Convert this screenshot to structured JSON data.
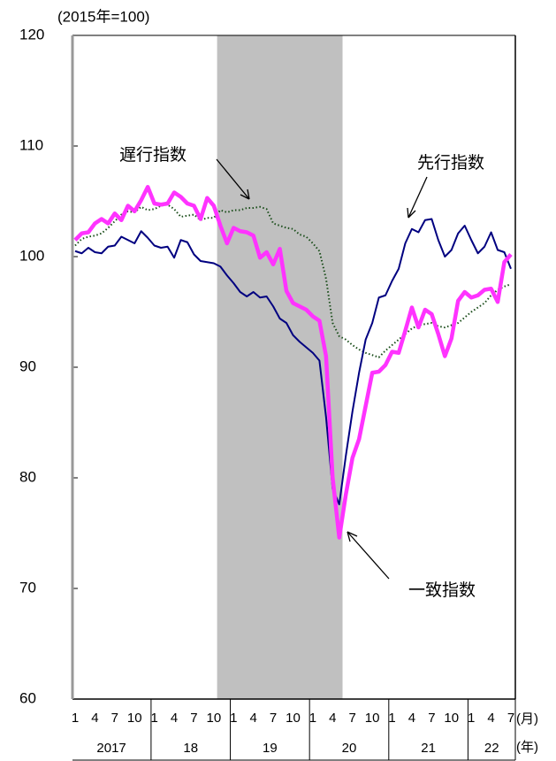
{
  "chart_data": {
    "type": "line",
    "unit_label": "(2015年=100)",
    "x_unit_month": "(月)",
    "x_unit_year": "(年)",
    "categories": [
      "1",
      null,
      null,
      "4",
      null,
      null,
      "7",
      null,
      null,
      "10",
      null,
      null,
      "1",
      null,
      null,
      "4",
      null,
      null,
      "7",
      null,
      null,
      "10",
      null,
      null,
      "1",
      null,
      null,
      "4",
      null,
      null,
      "7",
      null,
      null,
      "10",
      null,
      null,
      "1",
      null,
      null,
      "4",
      null,
      null,
      "7",
      null,
      null,
      "10",
      null,
      null,
      "1",
      null,
      null,
      "4",
      null,
      null,
      "7",
      null,
      null,
      "10",
      null,
      null,
      "1",
      null,
      null,
      "4",
      null,
      null,
      "7"
    ],
    "years": [
      "2017",
      "18",
      "19",
      "20",
      "21",
      "22"
    ],
    "shade": {
      "from": 21,
      "to": 40,
      "color": "#c0c0c0"
    },
    "ylim": [
      60,
      120
    ],
    "yticks": [
      60,
      70,
      80,
      90,
      100,
      110,
      120
    ],
    "series": [
      {
        "name": "先行指数",
        "color": "#000080",
        "style": "solid",
        "width": 2,
        "values": [
          100.5,
          100.3,
          100.8,
          100.4,
          100.3,
          100.9,
          101.0,
          101.8,
          101.5,
          101.2,
          102.3,
          101.7,
          101.0,
          100.8,
          100.9,
          99.9,
          101.5,
          101.3,
          100.2,
          99.6,
          99.5,
          99.4,
          99.1,
          98.3,
          97.6,
          96.8,
          96.4,
          96.8,
          96.3,
          96.4,
          95.5,
          94.4,
          94.0,
          92.9,
          92.3,
          91.8,
          91.3,
          90.6,
          85.5,
          79.0,
          77.6,
          82.0,
          86.0,
          89.5,
          92.5,
          94.0,
          96.3,
          96.5,
          97.8,
          98.9,
          101.2,
          102.5,
          102.2,
          103.3,
          103.4,
          101.5,
          100.0,
          100.6,
          102.1,
          102.8,
          101.5,
          100.3,
          100.9,
          102.2,
          100.6,
          100.4,
          98.9
        ]
      },
      {
        "name": "一致指数",
        "color": "#ff33ff",
        "style": "solid",
        "width": 4.5,
        "values": [
          101.5,
          102.1,
          102.2,
          103.0,
          103.4,
          103.0,
          103.9,
          103.3,
          104.6,
          104.1,
          105.1,
          106.3,
          104.8,
          104.7,
          104.8,
          105.8,
          105.4,
          104.8,
          104.6,
          103.4,
          105.3,
          104.6,
          102.8,
          101.2,
          102.6,
          102.3,
          102.2,
          101.9,
          99.9,
          100.4,
          99.3,
          100.7,
          96.9,
          95.8,
          95.5,
          95.2,
          94.6,
          94.2,
          91.0,
          80.0,
          74.6,
          78.5,
          81.8,
          83.5,
          86.5,
          89.5,
          89.6,
          90.2,
          91.4,
          91.3,
          93.3,
          95.4,
          93.6,
          95.2,
          94.8,
          93.0,
          91.0,
          92.6,
          96.0,
          96.8,
          96.3,
          96.5,
          97.0,
          97.1,
          95.9,
          99.5,
          100.2
        ]
      },
      {
        "name": "遅行指数",
        "color": "#1a4d1a",
        "style": "dotted",
        "width": 2,
        "values": [
          101.0,
          101.6,
          101.8,
          101.9,
          102.1,
          102.6,
          103.2,
          103.8,
          104.1,
          104.0,
          104.5,
          104.2,
          104.3,
          104.6,
          104.7,
          104.3,
          103.6,
          103.7,
          103.8,
          103.3,
          103.5,
          103.5,
          104.2,
          104.0,
          104.2,
          104.2,
          104.4,
          104.4,
          104.5,
          104.3,
          103.0,
          102.8,
          102.6,
          102.5,
          102.0,
          101.8,
          101.2,
          100.5,
          98.0,
          94.0,
          92.8,
          92.5,
          92.0,
          91.6,
          91.3,
          91.1,
          90.9,
          91.5,
          92.0,
          92.5,
          93.0,
          93.5,
          93.8,
          93.9,
          94.0,
          93.7,
          93.6,
          93.8,
          94.0,
          94.5,
          95.0,
          95.4,
          95.8,
          96.5,
          97.0,
          97.3,
          97.5
        ]
      }
    ]
  }
}
